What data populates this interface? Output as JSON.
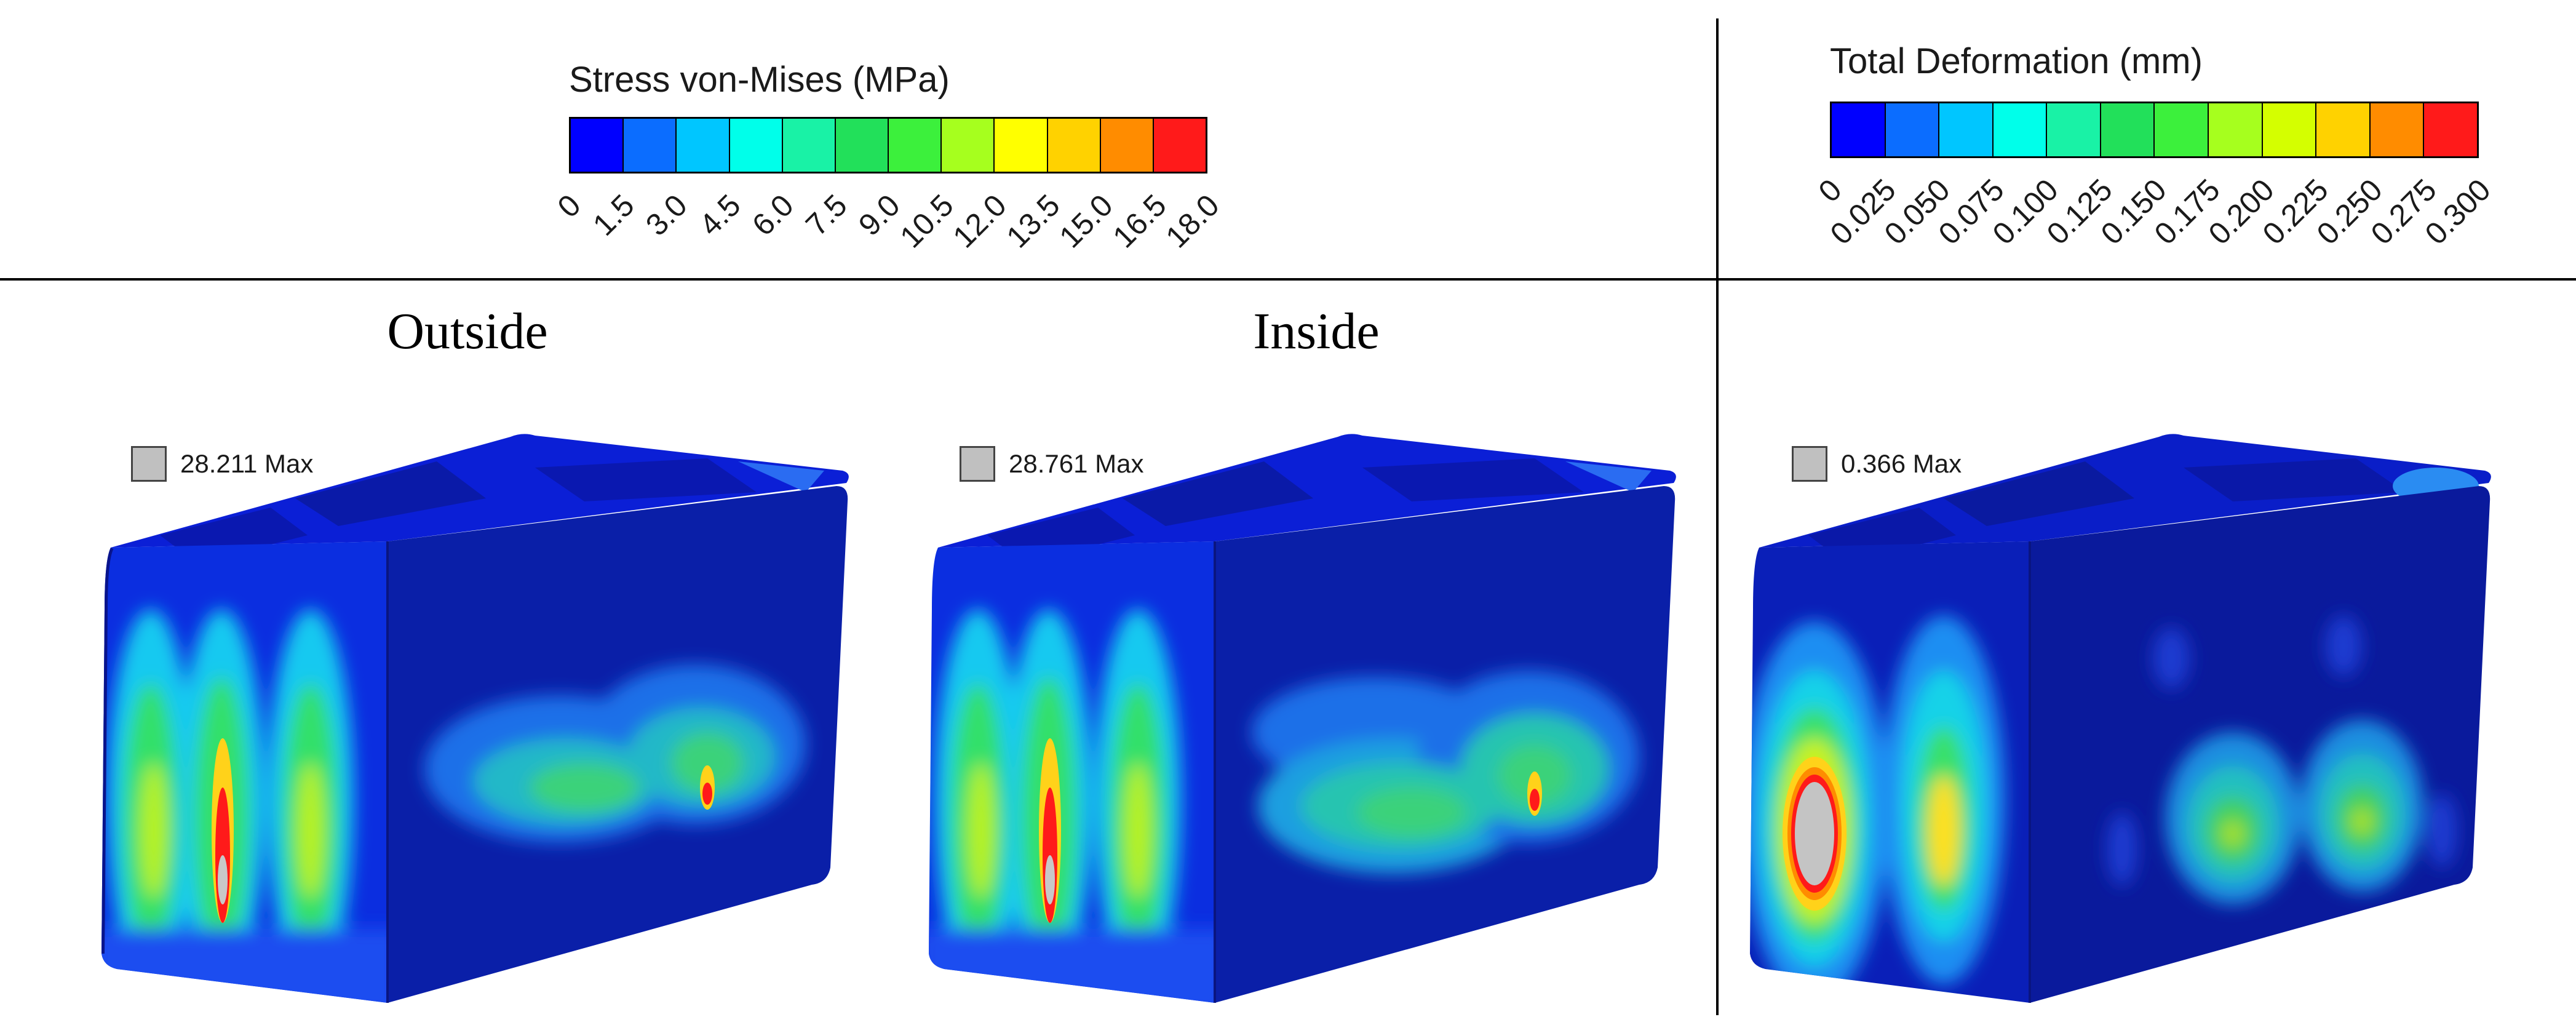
{
  "stress_legend": {
    "title": "Stress von-Mises (MPa)",
    "ticks": [
      "0",
      "1.5",
      "3.0",
      "4.5",
      "6.0",
      "7.5",
      "9.0",
      "10.5",
      "12.0",
      "13.5",
      "15.0",
      "16.5",
      "18.0"
    ],
    "colors": [
      "#0000ff",
      "#0b6dff",
      "#00c6ff",
      "#00ffea",
      "#19f2a6",
      "#22e05a",
      "#3cf03c",
      "#a6ff1e",
      "#ffff00",
      "#ffd200",
      "#ff8c00",
      "#ff1a1a"
    ]
  },
  "deformation_legend": {
    "title": "Total Deformation (mm)",
    "ticks": [
      "0",
      "0.025",
      "0.050",
      "0.075",
      "0.100",
      "0.125",
      "0.150",
      "0.175",
      "0.200",
      "0.225",
      "0.250",
      "0.275",
      "0.300"
    ],
    "colors": [
      "#0000ff",
      "#0b6dff",
      "#00c6ff",
      "#00ffea",
      "#19f2a6",
      "#22e05a",
      "#3cf03c",
      "#a6ff1e",
      "#d4ff00",
      "#ffd200",
      "#ff8c00",
      "#ff1a1a"
    ]
  },
  "panels": {
    "outside": {
      "title": "Outside",
      "max_label": "28.211 Max"
    },
    "inside": {
      "title": "Inside",
      "max_label": "28.761 Max"
    },
    "deformation": {
      "max_label": "0.366 Max"
    }
  }
}
